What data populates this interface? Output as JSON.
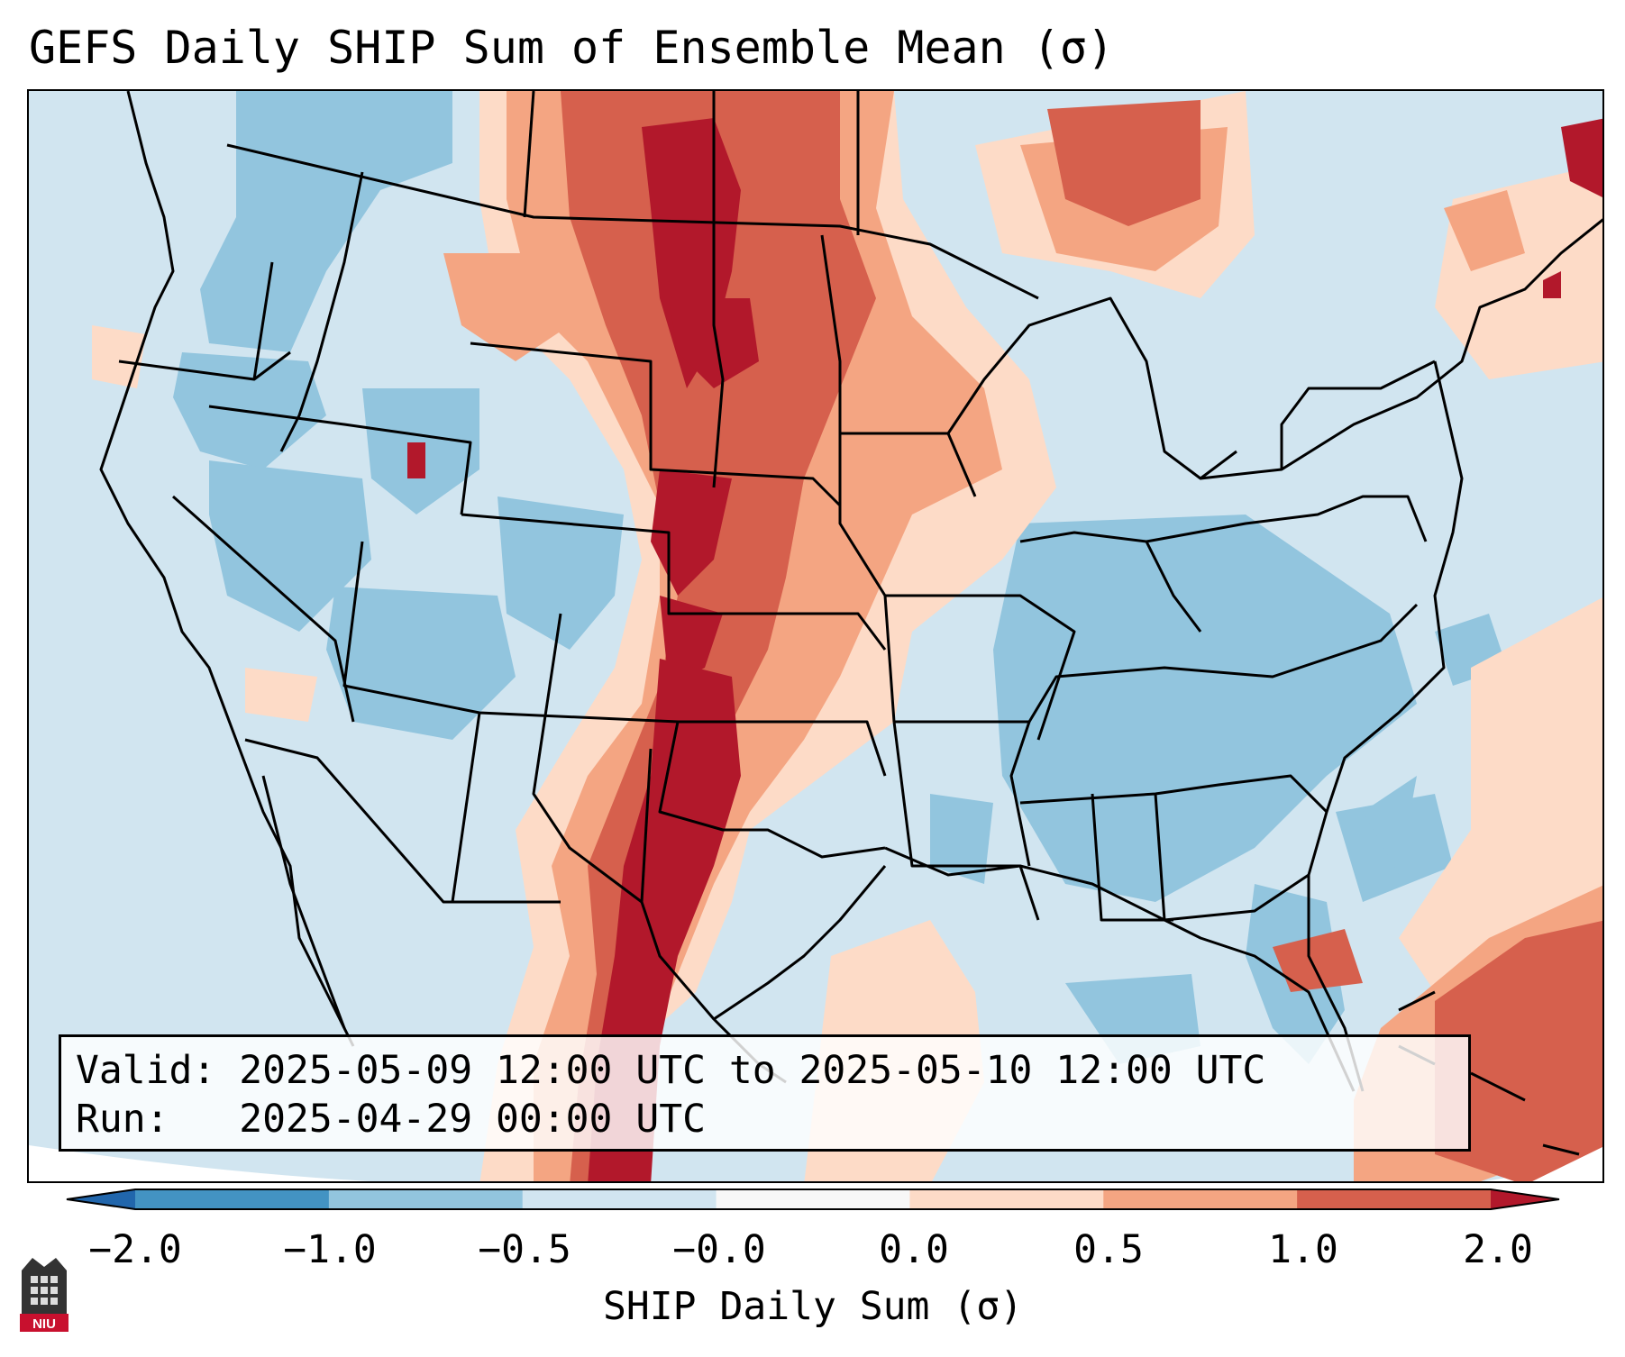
{
  "title": "GEFS Daily SHIP Sum of Ensemble Mean (σ)",
  "info": {
    "valid_line": "Valid: 2025-05-09 12:00 UTC to 2025-05-10 12:00 UTC",
    "run_line": "Run:   2025-04-29 00:00 UTC"
  },
  "colorbar": {
    "label": "SHIP Daily Sum (σ)",
    "ticks": [
      "−2.0",
      "−1.0",
      "−0.5",
      "−0.0",
      "0.0",
      "0.5",
      "1.0",
      "2.0"
    ],
    "bins": [
      {
        "range": "< −2.0",
        "color": "#2166ac"
      },
      {
        "range": "−2.0 to −1.0",
        "color": "#4393c3"
      },
      {
        "range": "−1.0 to −0.5",
        "color": "#92c5de"
      },
      {
        "range": "−0.5 to −0.0",
        "color": "#d1e5f0"
      },
      {
        "range": "−0.0 to 0.0",
        "color": "#f7f7f7"
      },
      {
        "range": "0.0 to 0.5",
        "color": "#fddbc7"
      },
      {
        "range": "0.5 to 1.0",
        "color": "#f4a582"
      },
      {
        "range": "1.0 to 2.0",
        "color": "#d6604d"
      },
      {
        "range": "> 2.0",
        "color": "#b2182b"
      }
    ]
  },
  "logo_text": "NIU"
}
